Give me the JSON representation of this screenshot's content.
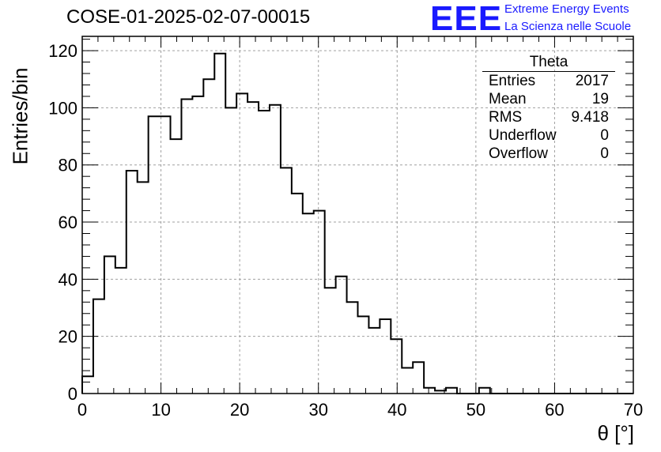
{
  "header": {
    "title": "COSE-01-2025-02-07-00015",
    "logo_text": "EEE",
    "logo_line1": "Extreme Energy Events",
    "logo_line2": "La Scienza nelle Scuole"
  },
  "colors": {
    "logo": "#1a1aff",
    "line": "#000000",
    "grid": "#a0a0a0"
  },
  "stats": {
    "title": "Theta",
    "rows": [
      {
        "label": "Entries",
        "value": "2017"
      },
      {
        "label": "Mean",
        "value": "19"
      },
      {
        "label": "RMS",
        "value": "9.418"
      },
      {
        "label": "Underflow",
        "value": "0"
      },
      {
        "label": "Overflow",
        "value": "0"
      }
    ]
  },
  "chart_data": {
    "type": "histogram",
    "title": "COSE-01-2025-02-07-00015",
    "xlabel": "θ [°]",
    "ylabel": "Entries/bin",
    "xlim": [
      0,
      70
    ],
    "ylim": [
      0,
      125
    ],
    "bin_width": 1.4,
    "x_ticks": [
      0,
      10,
      20,
      30,
      40,
      50,
      60,
      70
    ],
    "y_ticks": [
      0,
      20,
      40,
      60,
      80,
      100,
      120
    ],
    "grid": true,
    "legend": "top-right stats box",
    "values": [
      6,
      33,
      48,
      44,
      78,
      74,
      97,
      97,
      89,
      103,
      104,
      110,
      119,
      100,
      105,
      102,
      99,
      101,
      79,
      70,
      63,
      64,
      37,
      41,
      32,
      27,
      23,
      26,
      19,
      9,
      11,
      2,
      1,
      2,
      0,
      0,
      2,
      0,
      0,
      0,
      0,
      0,
      0,
      0,
      0,
      0,
      0,
      0,
      0,
      0
    ]
  }
}
